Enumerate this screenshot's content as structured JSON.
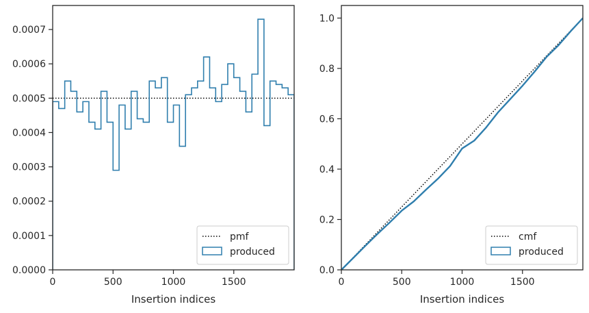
{
  "chart_data": [
    {
      "type": "line",
      "step": true,
      "xlabel": "Insertion indices",
      "ylabel": "",
      "xlim": [
        0,
        2000
      ],
      "ylim": [
        0,
        0.00077
      ],
      "xticks": [
        0,
        500,
        1000,
        1500
      ],
      "xtick_labels": [
        "0",
        "500",
        "1000",
        "1500"
      ],
      "yticks": [
        0,
        0.0001,
        0.0002,
        0.0003,
        0.0004,
        0.0005,
        0.0006,
        0.0007
      ],
      "ytick_labels": [
        "0.0000",
        "0.0001",
        "0.0002",
        "0.0003",
        "0.0004",
        "0.0005",
        "0.0006",
        "0.0007"
      ],
      "legend_position": "bottom-right",
      "colors": {
        "produced": "#2f7ead",
        "reference": "#000000"
      },
      "bin_width": 50,
      "produced_values": [
        0.00049,
        0.00047,
        0.00055,
        0.00052,
        0.00046,
        0.00049,
        0.00043,
        0.00041,
        0.00052,
        0.00043,
        0.00029,
        0.00048,
        0.00041,
        0.00052,
        0.00044,
        0.00043,
        0.00055,
        0.00053,
        0.00056,
        0.00043,
        0.00048,
        0.00036,
        0.00051,
        0.00053,
        0.00055,
        0.00062,
        0.00053,
        0.00049,
        0.00054,
        0.0006,
        0.00056,
        0.00052,
        0.00046,
        0.00057,
        0.00073,
        0.00042,
        0.00055,
        0.00054,
        0.00053,
        0.00051
      ],
      "reference_value": 0.0005,
      "legend": [
        {
          "label": "pmf",
          "style": "dotted"
        },
        {
          "label": "produced",
          "style": "box"
        }
      ]
    },
    {
      "type": "line",
      "xlabel": "Insertion indices",
      "ylabel": "",
      "xlim": [
        0,
        2000
      ],
      "ylim": [
        0,
        1.05
      ],
      "xticks": [
        0,
        500,
        1000,
        1500
      ],
      "xtick_labels": [
        "0",
        "500",
        "1000",
        "1500"
      ],
      "yticks": [
        0,
        0.2,
        0.4,
        0.6,
        0.8,
        1.0
      ],
      "ytick_labels": [
        "0.0",
        "0.2",
        "0.4",
        "0.6",
        "0.8",
        "1.0"
      ],
      "legend_position": "bottom-right",
      "colors": {
        "produced": "#2f7ead",
        "reference": "#000000"
      },
      "reference": {
        "x": [
          0,
          2000
        ],
        "y": [
          0,
          1.0
        ]
      },
      "produced": {
        "x": [
          0,
          100,
          200,
          300,
          400,
          500,
          600,
          700,
          800,
          900,
          1000,
          1100,
          1200,
          1300,
          1400,
          1500,
          1600,
          1700,
          1800,
          1900,
          2000
        ],
        "y": [
          0,
          0.048,
          0.096,
          0.143,
          0.188,
          0.235,
          0.272,
          0.318,
          0.362,
          0.412,
          0.482,
          0.513,
          0.566,
          0.627,
          0.679,
          0.731,
          0.787,
          0.846,
          0.893,
          0.948,
          1.0
        ]
      },
      "legend": [
        {
          "label": "cmf",
          "style": "dotted"
        },
        {
          "label": "produced",
          "style": "box"
        }
      ]
    }
  ]
}
